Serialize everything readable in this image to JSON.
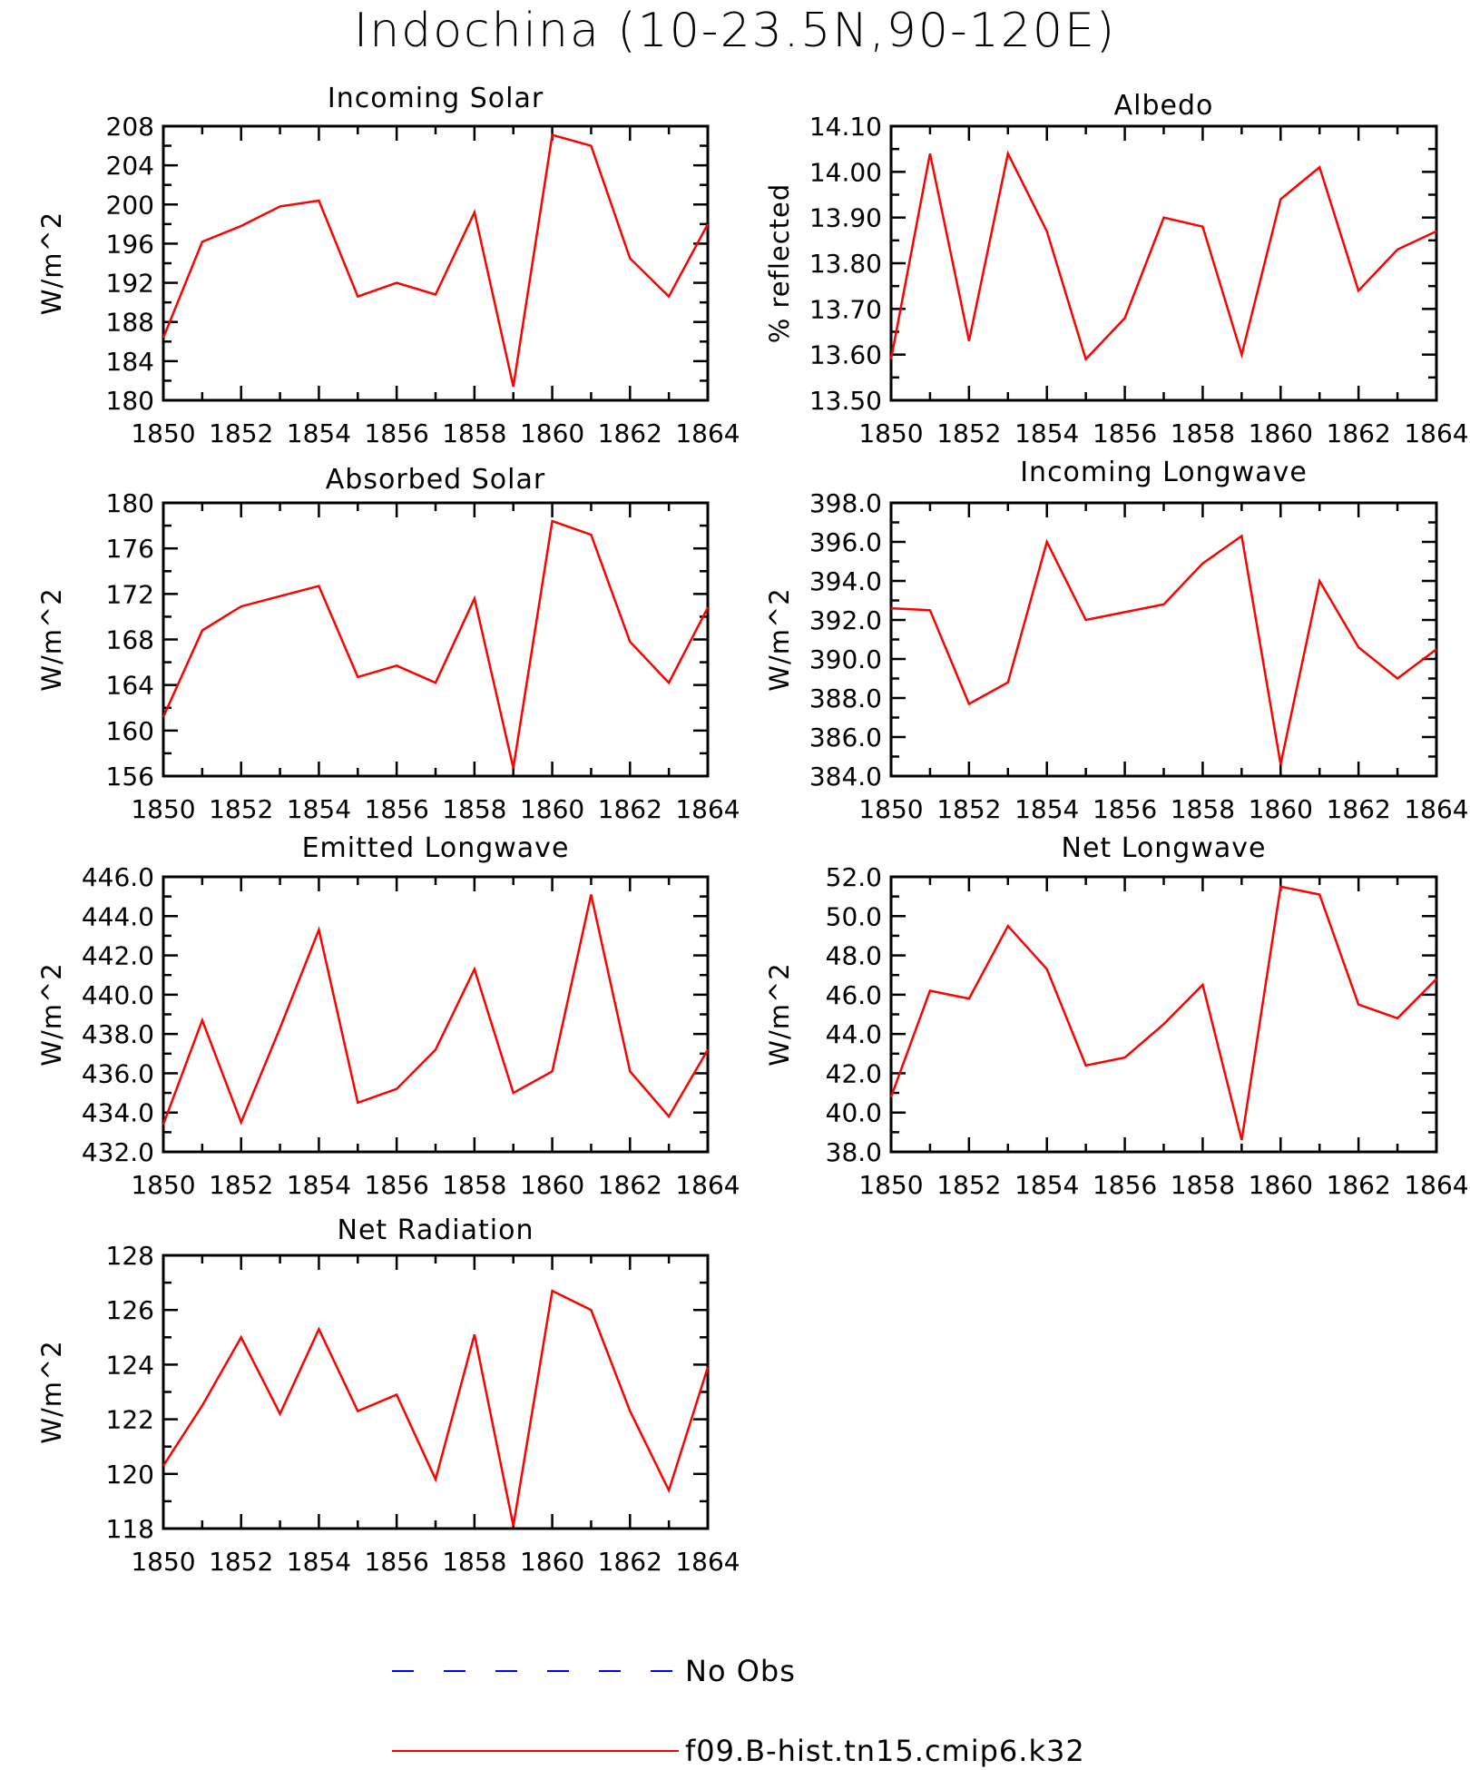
{
  "title": "Indochina (10-23.5N,90-120E)",
  "colors": {
    "model": "#ff0000",
    "obs": "#0000ff",
    "axis": "#000000"
  },
  "legend": {
    "items": [
      {
        "label": "No Obs",
        "style": "dashed",
        "color": "#0000ff"
      },
      {
        "label": "f09.B-hist.tn15.cmip6.k32",
        "style": "solid",
        "color": "#ff0000"
      }
    ]
  },
  "chart_data": [
    {
      "type": "line",
      "title": "Incoming Solar",
      "ylabel": "W/m^2",
      "xlabel": "",
      "x": [
        1850,
        1851,
        1852,
        1853,
        1854,
        1855,
        1856,
        1857,
        1858,
        1859,
        1860,
        1861,
        1862,
        1863,
        1864
      ],
      "xlim": [
        1850,
        1864
      ],
      "ylim": [
        180,
        208
      ],
      "xticks": [
        "1850",
        "1852",
        "1854",
        "1856",
        "1858",
        "1860",
        "1862",
        "1864"
      ],
      "yticks": [
        "180",
        "184",
        "188",
        "192",
        "196",
        "200",
        "204",
        "208"
      ],
      "series": [
        {
          "name": "f09.B-hist.tn15.cmip6.k32",
          "values": [
            186.4,
            196.2,
            197.8,
            199.8,
            200.4,
            190.6,
            192.0,
            190.8,
            199.2,
            181.4,
            207.1,
            206.0,
            194.5,
            190.6,
            198.0
          ]
        }
      ]
    },
    {
      "type": "line",
      "title": "Albedo",
      "ylabel": "% reflected",
      "xlabel": "",
      "x": [
        1850,
        1851,
        1852,
        1853,
        1854,
        1855,
        1856,
        1857,
        1858,
        1859,
        1860,
        1861,
        1862,
        1863,
        1864
      ],
      "xlim": [
        1850,
        1864
      ],
      "ylim": [
        13.5,
        14.1
      ],
      "xticks": [
        "1850",
        "1852",
        "1854",
        "1856",
        "1858",
        "1860",
        "1862",
        "1864"
      ],
      "yticks": [
        "13.50",
        "13.60",
        "13.70",
        "13.80",
        "13.90",
        "14.00",
        "14.10"
      ],
      "series": [
        {
          "name": "f09.B-hist.tn15.cmip6.k32",
          "values": [
            13.59,
            14.04,
            13.63,
            14.04,
            13.87,
            13.59,
            13.68,
            13.9,
            13.88,
            13.6,
            13.94,
            14.01,
            13.74,
            13.83,
            13.87
          ]
        }
      ]
    },
    {
      "type": "line",
      "title": "Absorbed Solar",
      "ylabel": "W/m^2",
      "xlabel": "",
      "x": [
        1850,
        1851,
        1852,
        1853,
        1854,
        1855,
        1856,
        1857,
        1858,
        1859,
        1860,
        1861,
        1862,
        1863,
        1864
      ],
      "xlim": [
        1850,
        1864
      ],
      "ylim": [
        156,
        180
      ],
      "xticks": [
        "1850",
        "1852",
        "1854",
        "1856",
        "1858",
        "1860",
        "1862",
        "1864"
      ],
      "yticks": [
        "156",
        "160",
        "164",
        "168",
        "172",
        "176",
        "180"
      ],
      "series": [
        {
          "name": "f09.B-hist.tn15.cmip6.k32",
          "values": [
            161.2,
            168.8,
            170.9,
            171.8,
            172.7,
            164.7,
            165.7,
            164.2,
            171.6,
            156.7,
            178.4,
            177.2,
            167.8,
            164.2,
            170.8
          ]
        }
      ]
    },
    {
      "type": "line",
      "title": "Incoming Longwave",
      "ylabel": "W/m^2",
      "xlabel": "",
      "x": [
        1850,
        1851,
        1852,
        1853,
        1854,
        1855,
        1856,
        1857,
        1858,
        1859,
        1860,
        1861,
        1862,
        1863,
        1864
      ],
      "xlim": [
        1850,
        1864
      ],
      "ylim": [
        384,
        398
      ],
      "xticks": [
        "1850",
        "1852",
        "1854",
        "1856",
        "1858",
        "1860",
        "1862",
        "1864"
      ],
      "yticks": [
        "384.0",
        "386.0",
        "388.0",
        "390.0",
        "392.0",
        "394.0",
        "396.0",
        "398.0"
      ],
      "series": [
        {
          "name": "f09.B-hist.tn15.cmip6.k32",
          "values": [
            392.6,
            392.5,
            387.7,
            388.8,
            396.0,
            392.0,
            392.4,
            392.8,
            394.9,
            396.3,
            384.6,
            394.0,
            390.6,
            389.0,
            390.5
          ]
        }
      ]
    },
    {
      "type": "line",
      "title": "Emitted Longwave",
      "ylabel": "W/m^2",
      "xlabel": "",
      "x": [
        1850,
        1851,
        1852,
        1853,
        1854,
        1855,
        1856,
        1857,
        1858,
        1859,
        1860,
        1861,
        1862,
        1863,
        1864
      ],
      "xlim": [
        1850,
        1864
      ],
      "ylim": [
        432,
        446
      ],
      "xticks": [
        "1850",
        "1852",
        "1854",
        "1856",
        "1858",
        "1860",
        "1862",
        "1864"
      ],
      "yticks": [
        "432.0",
        "434.0",
        "436.0",
        "438.0",
        "440.0",
        "442.0",
        "444.0",
        "446.0"
      ],
      "series": [
        {
          "name": "f09.B-hist.tn15.cmip6.k32",
          "values": [
            433.4,
            438.7,
            433.5,
            438.3,
            443.3,
            434.5,
            435.2,
            437.2,
            441.3,
            435.0,
            436.1,
            445.1,
            436.1,
            433.8,
            437.2
          ]
        }
      ]
    },
    {
      "type": "line",
      "title": "Net Longwave",
      "ylabel": "W/m^2",
      "xlabel": "",
      "x": [
        1850,
        1851,
        1852,
        1853,
        1854,
        1855,
        1856,
        1857,
        1858,
        1859,
        1860,
        1861,
        1862,
        1863,
        1864
      ],
      "xlim": [
        1850,
        1864
      ],
      "ylim": [
        38,
        52
      ],
      "xticks": [
        "1850",
        "1852",
        "1854",
        "1856",
        "1858",
        "1860",
        "1862",
        "1864"
      ],
      "yticks": [
        "38.0",
        "40.0",
        "42.0",
        "44.0",
        "46.0",
        "48.0",
        "50.0",
        "52.0"
      ],
      "series": [
        {
          "name": "f09.B-hist.tn15.cmip6.k32",
          "values": [
            40.8,
            46.2,
            45.8,
            49.5,
            47.3,
            42.4,
            42.8,
            44.5,
            46.5,
            38.6,
            51.5,
            51.1,
            45.5,
            44.8,
            46.8
          ]
        }
      ]
    },
    {
      "type": "line",
      "title": "Net Radiation",
      "ylabel": "W/m^2",
      "xlabel": "",
      "x": [
        1850,
        1851,
        1852,
        1853,
        1854,
        1855,
        1856,
        1857,
        1858,
        1859,
        1860,
        1861,
        1862,
        1863,
        1864
      ],
      "xlim": [
        1850,
        1864
      ],
      "ylim": [
        118,
        128
      ],
      "xticks": [
        "1850",
        "1852",
        "1854",
        "1856",
        "1858",
        "1860",
        "1862",
        "1864"
      ],
      "yticks": [
        "118",
        "120",
        "122",
        "124",
        "126",
        "128"
      ],
      "series": [
        {
          "name": "f09.B-hist.tn15.cmip6.k32",
          "values": [
            120.3,
            122.5,
            125.0,
            122.2,
            125.3,
            122.3,
            122.9,
            119.8,
            125.1,
            118.1,
            126.7,
            126.0,
            122.3,
            119.4,
            123.9
          ]
        }
      ]
    }
  ]
}
